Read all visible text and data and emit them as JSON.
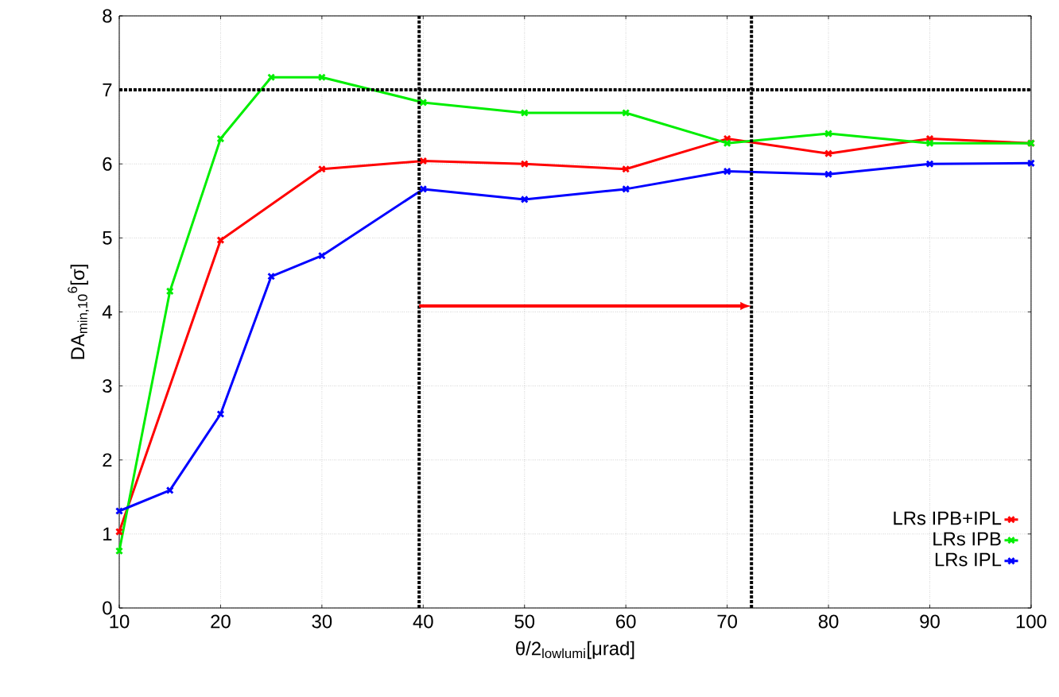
{
  "chart_data": {
    "type": "line",
    "xlabel": "θ/2$_{lowlumi}$[μrad]",
    "ylabel": "DA$_{min,10}$$^{6}$[σ]",
    "series": [
      {
        "name": "LRs IPB+IPL",
        "color": "#ff0000",
        "x": [
          10,
          20,
          30,
          40,
          50,
          60,
          70,
          80,
          90,
          100
        ],
        "values": [
          1.03,
          4.97,
          5.93,
          6.04,
          6.0,
          5.93,
          6.34,
          6.14,
          6.34,
          6.28
        ]
      },
      {
        "name": "LRs IPB",
        "color": "#00ee00",
        "x": [
          10,
          15,
          20,
          25,
          30,
          40,
          50,
          60,
          70,
          80,
          90,
          100
        ],
        "values": [
          0.77,
          4.28,
          6.34,
          7.17,
          7.17,
          6.83,
          6.69,
          6.69,
          6.28,
          6.41,
          6.28,
          6.28
        ]
      },
      {
        "name": "LRs IPL",
        "color": "#0000ff",
        "x": [
          10,
          15,
          20,
          25,
          30,
          40,
          50,
          60,
          70,
          80,
          90,
          100
        ],
        "values": [
          1.31,
          1.59,
          2.62,
          4.48,
          4.76,
          5.66,
          5.52,
          5.66,
          5.9,
          5.86,
          6.0,
          6.01
        ]
      }
    ],
    "xlim": [
      10,
      100
    ],
    "ylim": [
      0,
      8
    ],
    "xticks": [
      10,
      20,
      30,
      40,
      50,
      60,
      70,
      80,
      90,
      100
    ],
    "yticks": [
      0,
      1,
      2,
      3,
      4,
      5,
      6,
      7,
      8
    ],
    "ref_lines": [
      {
        "axis": "y",
        "value": 7,
        "color": "#000000",
        "line_style": "dotted"
      },
      {
        "axis": "x",
        "value": 39.6,
        "color": "#000000",
        "line_style": "dotted"
      },
      {
        "axis": "x",
        "value": 72.4,
        "color": "#000000",
        "line_style": "dotted"
      }
    ],
    "grid": true,
    "legend": "bottom right",
    "marker": "cross",
    "line_style": "solid"
  }
}
